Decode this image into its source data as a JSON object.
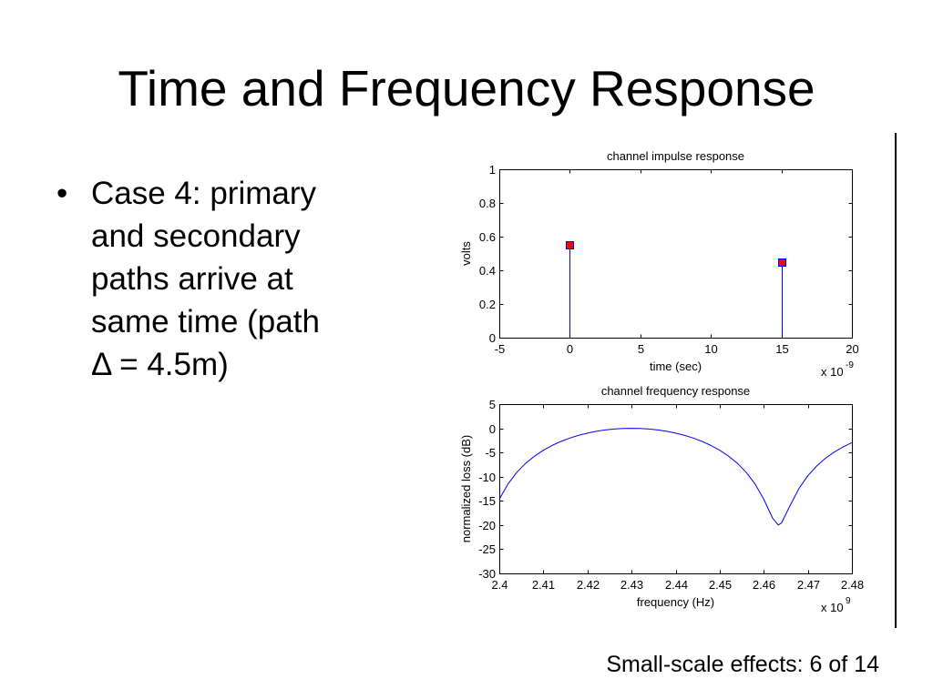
{
  "slide": {
    "title": "Time and Frequency Response",
    "bullet_symbol": "•",
    "bullet_lines": [
      "Case 4: primary",
      "and secondary",
      "paths arrive at",
      "same time (path",
      "Δ = 4.5m)"
    ],
    "footer": "Small-scale effects: 6 of 14"
  },
  "colors": {
    "axes": "#000000",
    "line": "#0000ff",
    "marker_face": "#ff0000",
    "marker_edge": "#0000ff"
  },
  "chart_data": [
    {
      "type": "scatter",
      "stem": true,
      "title": "channel impulse response",
      "xlabel": "time (sec)",
      "ylabel": "volts",
      "x_multiplier": {
        "base": "x 10",
        "exponent": "-9"
      },
      "x": [
        0,
        15
      ],
      "y": [
        0.55,
        0.45
      ],
      "xlim": [
        -5,
        20
      ],
      "ylim": [
        0,
        1
      ],
      "xticks": [
        -5,
        0,
        5,
        10,
        15,
        20
      ],
      "yticks": [
        0,
        0.2,
        0.4,
        0.6,
        0.8,
        1
      ],
      "grid": false
    },
    {
      "type": "line",
      "title": "channel frequency response",
      "xlabel": "frequency (Hz)",
      "ylabel": "normalized loss (dB)",
      "x_multiplier": {
        "base": "x 10",
        "exponent": "9"
      },
      "x": [
        2.4,
        2.402,
        2.404,
        2.406,
        2.408,
        2.41,
        2.412,
        2.414,
        2.416,
        2.418,
        2.42,
        2.422,
        2.424,
        2.426,
        2.428,
        2.43,
        2.432,
        2.434,
        2.436,
        2.438,
        2.44,
        2.442,
        2.444,
        2.446,
        2.448,
        2.45,
        2.452,
        2.454,
        2.456,
        2.458,
        2.46,
        2.462,
        2.4633,
        2.464,
        2.466,
        2.468,
        2.47,
        2.472,
        2.474,
        2.476,
        2.478,
        2.48
      ],
      "y": [
        -14.66,
        -11.47,
        -9.08,
        -7.22,
        -5.74,
        -4.53,
        -3.54,
        -2.71,
        -2.02,
        -1.45,
        -0.99,
        -0.63,
        -0.35,
        -0.15,
        -0.04,
        0,
        -0.04,
        -0.15,
        -0.35,
        -0.63,
        -0.99,
        -1.45,
        -2.02,
        -2.71,
        -3.54,
        -4.53,
        -5.74,
        -7.22,
        -9.08,
        -11.47,
        -14.66,
        -18.57,
        -20,
        -19.6,
        -15.93,
        -12.43,
        -9.81,
        -7.8,
        -6.2,
        -4.91,
        -3.85,
        -2.97
      ],
      "xlim": [
        2.4,
        2.48
      ],
      "ylim": [
        -30,
        5
      ],
      "xticks": [
        2.4,
        2.41,
        2.42,
        2.43,
        2.44,
        2.45,
        2.46,
        2.47,
        2.48
      ],
      "yticks": [
        -30,
        -25,
        -20,
        -15,
        -10,
        -5,
        0,
        5
      ],
      "grid": false
    }
  ]
}
